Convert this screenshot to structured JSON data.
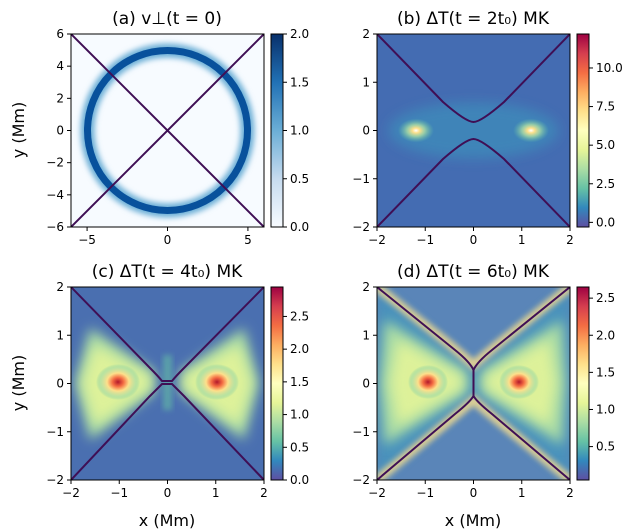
{
  "chart_data": [
    {
      "type": "heatmap",
      "panel": "a",
      "title": "(a) v⊥(t = 0)",
      "ylabel": "y (Mm)",
      "xlabel": "",
      "xlim": [
        -6,
        6
      ],
      "ylim": [
        -6,
        6
      ],
      "xticks": [
        "−5",
        "0",
        "5"
      ],
      "yticks": [
        "−6",
        "−4",
        "−2",
        "0",
        "2",
        "4",
        "6"
      ],
      "colorbar": {
        "range": [
          0.0,
          2.0
        ],
        "ticks": [
          "0.0",
          "0.5",
          "1.0",
          "1.5",
          "2.0"
        ],
        "colormap": "Blues"
      },
      "features": {
        "ring_radius": 5,
        "x_lines": true
      }
    },
    {
      "type": "heatmap",
      "panel": "b",
      "title": "(b) ΔT(t = 2t₀) MK",
      "ylabel": "",
      "xlabel": "",
      "xlim": [
        -2,
        2
      ],
      "ylim": [
        -2,
        2
      ],
      "xticks": [
        "−2",
        "−1",
        "0",
        "1",
        "2"
      ],
      "yticks": [
        "−2",
        "−1",
        "0",
        "1",
        "2"
      ],
      "colorbar": {
        "range": [
          -0.3,
          12.2
        ],
        "ticks": [
          "0.0",
          "2.5",
          "5.0",
          "7.5",
          "10.0"
        ],
        "colormap": "Spectral_r"
      },
      "features": {
        "hotspots_x": [
          -1.2,
          1.2
        ],
        "peak": 12.0
      }
    },
    {
      "type": "heatmap",
      "panel": "c",
      "title": "(c) ΔT(t = 4t₀) MK",
      "ylabel": "y (Mm)",
      "xlabel": "x (Mm)",
      "xlim": [
        -2,
        2
      ],
      "ylim": [
        -2,
        2
      ],
      "xticks": [
        "−2",
        "−1",
        "0",
        "1",
        "2"
      ],
      "yticks": [
        "−2",
        "−1",
        "0",
        "1",
        "2"
      ],
      "colorbar": {
        "range": [
          0.0,
          2.95
        ],
        "ticks": [
          "0.0",
          "0.5",
          "1.0",
          "1.5",
          "2.0",
          "2.5"
        ],
        "colormap": "Spectral_r"
      },
      "features": {
        "hotspots_x": [
          -1.1,
          1.1
        ],
        "peak": 2.9
      }
    },
    {
      "type": "heatmap",
      "panel": "d",
      "title": "(d) ΔT(t = 6t₀) MK",
      "ylabel": "",
      "xlabel": "x (Mm)",
      "xlim": [
        -2,
        2
      ],
      "ylim": [
        -2,
        2
      ],
      "xticks": [
        "−2",
        "−1",
        "0",
        "1",
        "2"
      ],
      "yticks": [
        "−2",
        "−1",
        "0",
        "1",
        "2"
      ],
      "colorbar": {
        "range": [
          0.05,
          2.65
        ],
        "ticks": [
          "0.5",
          "1.0",
          "1.5",
          "2.0",
          "2.5"
        ],
        "colormap": "Spectral_r"
      },
      "features": {
        "hotspots_x": [
          -1.0,
          1.0
        ],
        "peak": 2.6
      }
    }
  ]
}
